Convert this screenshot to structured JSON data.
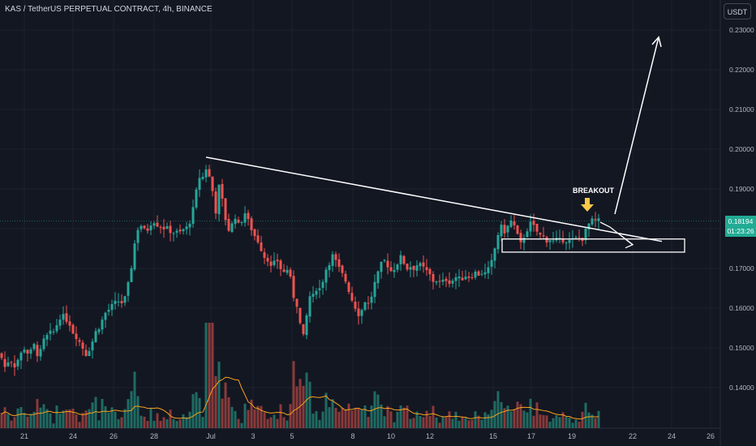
{
  "header": {
    "symbol_title": "KAS / TetherUS PERPETUAL CONTRACT, 4h, BINANCE",
    "currency_button": "USDT"
  },
  "price_badge": {
    "price": "0.18194",
    "countdown": "01:23:26"
  },
  "annotation": {
    "breakout_label": "BREAKOUT"
  },
  "colors": {
    "background": "#131722",
    "up": "#26a69a",
    "down": "#ef5350",
    "volume_up": "#1f6b63",
    "volume_down": "#8a3a3a",
    "volume_ma": "#f7a21b",
    "drawing": "#ffffff",
    "arrow_marker": "#f7c948"
  },
  "chart_data": {
    "type": "candlestick",
    "timeframe": "4h",
    "y_axis": {
      "ticks": [
        "0.23000",
        "0.22000",
        "0.21000",
        "0.20000",
        "0.19000",
        "0.18000",
        "0.17000",
        "0.16000",
        "0.15000",
        "0.14000"
      ],
      "range": [
        0.1305,
        0.2375
      ]
    },
    "x_axis": {
      "ticks": [
        "21",
        "24",
        "26",
        "28",
        "Jul",
        "3",
        "5",
        "8",
        "10",
        "12",
        "15",
        "17",
        "19",
        "22",
        "24",
        "26"
      ]
    },
    "last_price": 0.18194,
    "close_path": [
      [
        0,
        0.1486
      ],
      [
        6,
        0.1452
      ],
      [
        12,
        0.1474
      ],
      [
        18,
        0.1456
      ],
      [
        24,
        0.1478
      ],
      [
        30,
        0.15
      ],
      [
        36,
        0.1482
      ],
      [
        42,
        0.1506
      ],
      [
        48,
        0.1476
      ],
      [
        54,
        0.1518
      ],
      [
        60,
        0.1534
      ],
      [
        66,
        0.154
      ],
      [
        72,
        0.1568
      ],
      [
        76,
        0.159
      ],
      [
        80,
        0.1565
      ],
      [
        84,
        0.1578
      ],
      [
        88,
        0.1545
      ],
      [
        94,
        0.153
      ],
      [
        100,
        0.1508
      ],
      [
        106,
        0.1485
      ],
      [
        112,
        0.1505
      ],
      [
        118,
        0.154
      ],
      [
        124,
        0.156
      ],
      [
        130,
        0.1588
      ],
      [
        136,
        0.16
      ],
      [
        142,
        0.1612
      ],
      [
        148,
        0.162
      ],
      [
        152,
        0.1608
      ],
      [
        156,
        0.164
      ],
      [
        160,
        0.1675
      ],
      [
        164,
        0.1735
      ],
      [
        168,
        0.179
      ],
      [
        172,
        0.1812
      ],
      [
        176,
        0.1805
      ],
      [
        180,
        0.1785
      ],
      [
        184,
        0.1812
      ],
      [
        188,
        0.1818
      ],
      [
        192,
        0.1822
      ],
      [
        196,
        0.18
      ],
      [
        200,
        0.1815
      ],
      [
        204,
        0.179
      ],
      [
        208,
        0.1808
      ],
      [
        212,
        0.1782
      ],
      [
        216,
        0.18
      ],
      [
        220,
        0.178
      ],
      [
        224,
        0.18
      ],
      [
        228,
        0.1795
      ],
      [
        232,
        0.1808
      ],
      [
        236,
        0.183
      ],
      [
        240,
        0.1865
      ],
      [
        244,
        0.192
      ],
      [
        248,
        0.194
      ],
      [
        252,
        0.192
      ],
      [
        255,
        0.1968
      ],
      [
        258,
        0.193
      ],
      [
        262,
        0.1895
      ],
      [
        266,
        0.1845
      ],
      [
        270,
        0.1905
      ],
      [
        274,
        0.187
      ],
      [
        278,
        0.1825
      ],
      [
        282,
        0.1798
      ],
      [
        286,
        0.181
      ],
      [
        290,
        0.1832
      ],
      [
        294,
        0.1808
      ],
      [
        298,
        0.1822
      ],
      [
        302,
        0.184
      ],
      [
        306,
        0.1818
      ],
      [
        310,
        0.18
      ],
      [
        314,
        0.1782
      ],
      [
        318,
        0.177
      ],
      [
        322,
        0.175
      ],
      [
        326,
        0.173
      ],
      [
        330,
        0.1725
      ],
      [
        334,
        0.1702
      ],
      [
        338,
        0.1712
      ],
      [
        342,
        0.172
      ],
      [
        346,
        0.17
      ],
      [
        350,
        0.169
      ],
      [
        354,
        0.1698
      ],
      [
        358,
        0.1672
      ],
      [
        362,
        0.163
      ],
      [
        366,
        0.161
      ],
      [
        370,
        0.156
      ],
      [
        373,
        0.152
      ],
      [
        376,
        0.154
      ],
      [
        379,
        0.16
      ],
      [
        383,
        0.164
      ],
      [
        387,
        0.1625
      ],
      [
        391,
        0.166
      ],
      [
        395,
        0.1645
      ],
      [
        399,
        0.168
      ],
      [
        403,
        0.1705
      ],
      [
        407,
        0.172
      ],
      [
        411,
        0.1735
      ],
      [
        415,
        0.171
      ],
      [
        419,
        0.1695
      ],
      [
        423,
        0.168
      ],
      [
        427,
        0.1665
      ],
      [
        431,
        0.164
      ],
      [
        435,
        0.1615
      ],
      [
        439,
        0.16
      ],
      [
        443,
        0.1582
      ],
      [
        447,
        0.16
      ],
      [
        451,
        0.1625
      ],
      [
        455,
        0.1605
      ],
      [
        459,
        0.164
      ],
      [
        463,
        0.167
      ],
      [
        467,
        0.169
      ],
      [
        471,
        0.1715
      ],
      [
        475,
        0.172
      ],
      [
        479,
        0.1705
      ],
      [
        483,
        0.169
      ],
      [
        487,
        0.1705
      ],
      [
        491,
        0.1718
      ],
      [
        495,
        0.173
      ],
      [
        499,
        0.171
      ],
      [
        503,
        0.1698
      ],
      [
        507,
        0.1708
      ],
      [
        511,
        0.17
      ],
      [
        515,
        0.1712
      ],
      [
        519,
        0.1705
      ],
      [
        523,
        0.1698
      ],
      [
        527,
        0.169
      ],
      [
        531,
        0.168
      ],
      [
        535,
        0.1665
      ],
      [
        539,
        0.1672
      ],
      [
        543,
        0.166
      ],
      [
        547,
        0.1668
      ],
      [
        551,
        0.1675
      ],
      [
        555,
        0.1665
      ],
      [
        559,
        0.1672
      ],
      [
        563,
        0.168
      ],
      [
        567,
        0.167
      ],
      [
        571,
        0.1678
      ],
      [
        575,
        0.1684
      ],
      [
        579,
        0.1678
      ],
      [
        583,
        0.1686
      ],
      [
        587,
        0.169
      ],
      [
        591,
        0.1684
      ],
      [
        595,
        0.1692
      ],
      [
        599,
        0.1685
      ],
      [
        603,
        0.17
      ],
      [
        607,
        0.172
      ],
      [
        611,
        0.176
      ],
      [
        615,
        0.1795
      ],
      [
        619,
        0.1805
      ],
      [
        623,
        0.179
      ],
      [
        627,
        0.181
      ],
      [
        631,
        0.1822
      ],
      [
        635,
        0.18
      ],
      [
        639,
        0.1775
      ],
      [
        643,
        0.1755
      ],
      [
        647,
        0.179
      ],
      [
        651,
        0.1802
      ],
      [
        655,
        0.1815
      ],
      [
        659,
        0.18
      ],
      [
        663,
        0.179
      ],
      [
        667,
        0.178
      ],
      [
        671,
        0.1778
      ],
      [
        675,
        0.177
      ],
      [
        679,
        0.1775
      ],
      [
        683,
        0.1765
      ],
      [
        687,
        0.1772
      ],
      [
        691,
        0.1768
      ],
      [
        695,
        0.1775
      ],
      [
        699,
        0.177
      ],
      [
        703,
        0.1768
      ],
      [
        707,
        0.1772
      ],
      [
        711,
        0.1775
      ],
      [
        715,
        0.1778
      ],
      [
        719,
        0.1775
      ],
      [
        723,
        0.18
      ],
      [
        727,
        0.1815
      ],
      [
        731,
        0.182
      ],
      [
        735,
        0.1818
      ],
      [
        739,
        0.1819
      ]
    ],
    "drawings": {
      "trendline": [
        [
          254,
          0.198
        ],
        [
          816,
          0.1768
        ]
      ],
      "box": {
        "x": [
          619,
          844
        ],
        "y": [
          0.1741,
          0.1774
        ]
      },
      "arrow_up_target": [
        812,
        0.2282
      ],
      "arrow_small_target": [
        780,
        0.1768
      ]
    }
  }
}
